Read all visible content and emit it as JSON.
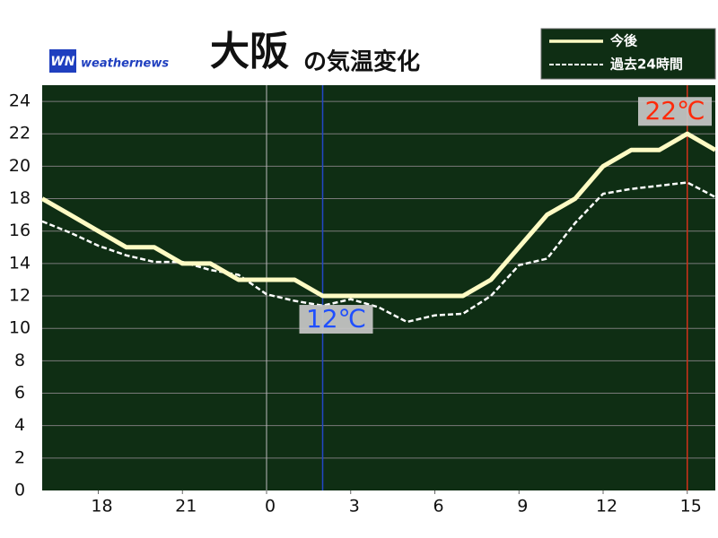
{
  "chart_data": {
    "type": "line",
    "title_place": "大阪",
    "title": "の気温変化",
    "logo_icon": "WN",
    "logo_text": "weathernews",
    "x": [
      16,
      17,
      18,
      19,
      20,
      21,
      22,
      23,
      24,
      25,
      26,
      27,
      28,
      29,
      30,
      31,
      32,
      33,
      34,
      35,
      36,
      37,
      38,
      39,
      40
    ],
    "xlim": [
      16,
      40
    ],
    "xticks": [
      18,
      21,
      {
        "value": 24,
        "label": "0"
      },
      {
        "value": 27,
        "label": "3"
      },
      {
        "value": 30,
        "label": "6"
      },
      {
        "value": 33,
        "label": "9"
      },
      {
        "value": 36,
        "label": "12"
      },
      {
        "value": 39,
        "label": "15"
      }
    ],
    "ylim": [
      0,
      25
    ],
    "yticks": [
      0,
      2,
      4,
      6,
      8,
      10,
      12,
      14,
      16,
      18,
      20,
      22,
      24
    ],
    "grid": true,
    "legend": "top-right",
    "series": [
      {
        "name": "今後",
        "color": "#fffbc4",
        "style": "solid",
        "values": [
          18,
          17,
          16,
          15,
          15,
          14,
          14,
          13,
          13,
          13,
          12,
          12,
          12,
          12,
          12,
          12,
          13,
          15,
          17,
          18,
          20,
          21,
          21,
          22,
          21
        ]
      },
      {
        "name": "過去24時間",
        "color": "#ffffff",
        "style": "dashed",
        "values": [
          16.6,
          15.9,
          15.1,
          14.5,
          14.1,
          14.1,
          13.6,
          13.3,
          12.1,
          11.7,
          11.4,
          11.8,
          11.3,
          10.4,
          10.8,
          10.9,
          12.0,
          13.9,
          14.3,
          16.5,
          18.3,
          18.6,
          18.8,
          19.0,
          18.1
        ]
      }
    ],
    "annotations": [
      {
        "x": 26,
        "value": 12,
        "label": "12℃",
        "color": "#1f4fff",
        "line_color": "#2347c8",
        "position": "below"
      },
      {
        "x": 39,
        "value": 22,
        "label": "22℃",
        "color": "#ff2a0a",
        "line_color": "#d0301a",
        "position": "above"
      }
    ]
  }
}
